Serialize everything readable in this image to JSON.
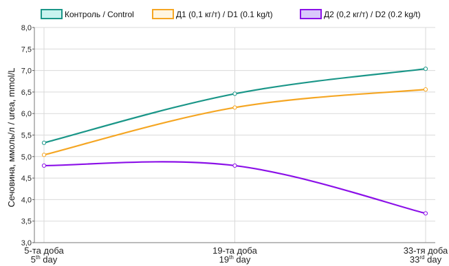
{
  "chart_data": {
    "type": "line",
    "categories": [
      {
        "line1": "5-та доба",
        "num": "5",
        "sup": "th",
        "word": "day"
      },
      {
        "line1": "19-та доба",
        "num": "19",
        "sup": "th",
        "word": "day"
      },
      {
        "line1": "33-тя доба",
        "num": "33",
        "sup": "rd",
        "word": "day"
      }
    ],
    "series": [
      {
        "name": "Контроль / Control",
        "color": "#1a9688",
        "values": [
          5.32,
          6.46,
          7.04
        ]
      },
      {
        "name": "Д1 (0,1 кг/т) / D1 (0.1 kg/t)",
        "color": "#f5a623",
        "values": [
          5.04,
          6.14,
          6.56
        ]
      },
      {
        "name": "Д2 (0,2 кг/т) / D2 (0.2 kg/t)",
        "color": "#8b10e8",
        "values": [
          4.79,
          4.79,
          3.68
        ]
      }
    ],
    "ylabel": "Сечовина, ммоль/л / urea, mmol/L",
    "ylim": [
      3.0,
      8.0
    ],
    "yticks": [
      "3,0",
      "3,5",
      "4,0",
      "4,5",
      "5,0",
      "5,5",
      "6,0",
      "6,5",
      "7,0",
      "7,5",
      "8,0"
    ],
    "grid": true,
    "legend_position": "top"
  }
}
